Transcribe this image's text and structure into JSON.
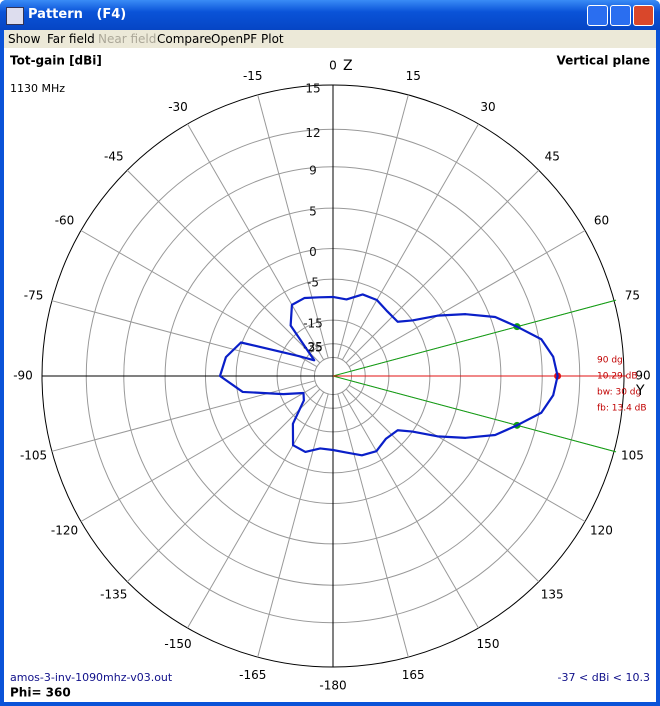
{
  "window": {
    "title": "Pattern   (F4)",
    "menu": [
      "Show",
      "Far field",
      "Near field",
      "Compare",
      "OpenPF",
      "Plot"
    ]
  },
  "chart_data": {
    "type": "polar",
    "title": "Tot-gain [dBi]",
    "subtitle": "Vertical plane",
    "frequency": "1130 MHz",
    "axis_labels": {
      "top": "Z",
      "right": "Y"
    },
    "footer_left": "amos-3-inv-1090mhz-v03.out",
    "footer_phi": "Phi= 360",
    "footer_right": "-37 < dBi < 10.3",
    "ylim": [
      -35,
      15
    ],
    "yticks": [
      15,
      12,
      9,
      5,
      0,
      -5,
      -15,
      -25,
      -35
    ],
    "xticks": [
      0,
      15,
      30,
      45,
      60,
      75,
      90,
      105,
      120,
      135,
      150,
      165,
      -180,
      -165,
      -150,
      -135,
      -120,
      -105,
      -90,
      -75,
      -60,
      -45,
      -30,
      -15
    ],
    "series": [
      {
        "name": "Tot-gain",
        "color": "#0a1fc8",
        "x": [
          -180,
          -170,
          -160,
          -150,
          -140,
          -130,
          -120,
          -110,
          -100,
          -90,
          -80,
          -70,
          -60,
          -50,
          -40,
          -30,
          -20,
          -10,
          0,
          10,
          20,
          30,
          40,
          50,
          55,
          60,
          65,
          70,
          75,
          80,
          85,
          90,
          95,
          100,
          105,
          110,
          115,
          120,
          125,
          130,
          140,
          150,
          160,
          170,
          180
        ],
        "values": [
          -9.9,
          -10,
          -8.3,
          -8.5,
          -13,
          -22,
          -24,
          -16,
          -6,
          -2.2,
          -2.9,
          -4.8,
          -21,
          -30,
          -12,
          -8,
          -7.8,
          -8.5,
          -8.7,
          -9,
          -7,
          -6.8,
          -7.5,
          -7.5,
          -5,
          -1,
          2.5,
          5.5,
          7.3,
          9.2,
          10,
          10.29,
          10,
          9.2,
          7.3,
          5.5,
          2.5,
          -1,
          -5,
          -7.5,
          -8,
          -7,
          -7.5,
          -9,
          -9.9
        ]
      }
    ],
    "peak": {
      "angle": 90,
      "gain": 10.29,
      "color": "#e01010"
    },
    "beam_points": [
      {
        "angle": 75,
        "gain": 7.3
      },
      {
        "angle": 105,
        "gain": 7.3
      }
    ],
    "beam_color": "#10a010",
    "annotations": [
      "90 dg",
      "10.29 dB",
      "bw: 30 dg",
      "fb: 13.4 dB"
    ]
  }
}
